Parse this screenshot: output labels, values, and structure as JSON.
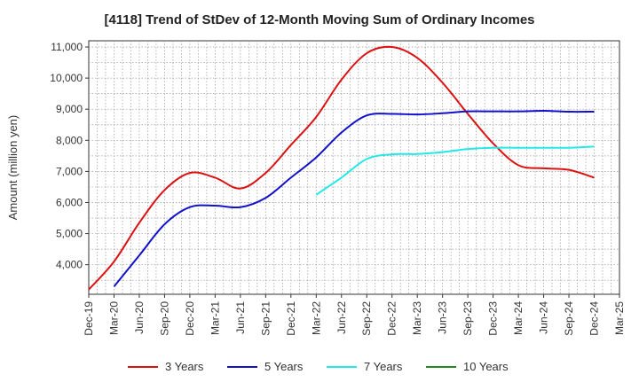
{
  "chart_data": {
    "type": "line",
    "title": "[4118]  Trend of StDev of 12-Month Moving Sum of Ordinary Incomes",
    "xlabel": "",
    "ylabel": "Amount (million yen)",
    "ylim": [
      3050,
      11200
    ],
    "yticks": [
      4000,
      5000,
      6000,
      7000,
      8000,
      9000,
      10000,
      11000
    ],
    "ytick_labels": [
      "4,000",
      "5,000",
      "6,000",
      "7,000",
      "8,000",
      "9,000",
      "10,000",
      "11,000"
    ],
    "categories": [
      "Dec-19",
      "Mar-20",
      "Jun-20",
      "Sep-20",
      "Dec-20",
      "Mar-21",
      "Jun-21",
      "Sep-21",
      "Dec-21",
      "Mar-22",
      "Jun-22",
      "Sep-22",
      "Dec-22",
      "Mar-23",
      "Jun-23",
      "Sep-23",
      "Dec-23",
      "Mar-24",
      "Jun-24",
      "Sep-24",
      "Dec-24",
      "Mar-25"
    ],
    "grid": true,
    "legend_position": "bottom",
    "series": [
      {
        "name": "3 Years",
        "color": "#dd1111",
        "values": [
          3200,
          4100,
          5350,
          6400,
          6950,
          6800,
          6450,
          6950,
          7850,
          8750,
          9950,
          10800,
          11000,
          10650,
          9850,
          8850,
          7900,
          7200,
          7100,
          7050,
          6800,
          null
        ]
      },
      {
        "name": "5 Years",
        "color": "#1111cc",
        "values": [
          null,
          3300,
          4300,
          5300,
          5850,
          5900,
          5850,
          6150,
          6800,
          7450,
          8250,
          8800,
          8850,
          8830,
          8870,
          8930,
          8930,
          8930,
          8950,
          8920,
          8920,
          null
        ]
      },
      {
        "name": "7 Years",
        "color": "#22e8e8",
        "values": [
          null,
          null,
          null,
          null,
          null,
          null,
          null,
          null,
          null,
          6250,
          6800,
          7400,
          7550,
          7560,
          7620,
          7720,
          7760,
          7760,
          7760,
          7760,
          7800,
          null
        ]
      },
      {
        "name": "10 Years",
        "color": "#228822",
        "values": [
          null,
          null,
          null,
          null,
          null,
          null,
          null,
          null,
          null,
          null,
          null,
          null,
          null,
          null,
          null,
          null,
          null,
          null,
          null,
          null,
          null,
          null
        ]
      }
    ]
  }
}
